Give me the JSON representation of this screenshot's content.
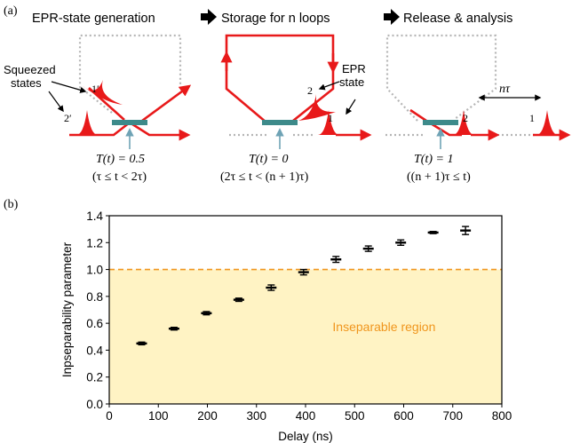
{
  "panel_a": {
    "label": "(a)",
    "stages": [
      {
        "title": "EPR-state generation",
        "eq": "T(t) = 0.5",
        "cond": "(τ ≤ t < 2τ)"
      },
      {
        "title": "Storage for n loops",
        "eq": "T(t) = 0",
        "cond": "(2τ ≤ t < (n + 1)τ)"
      },
      {
        "title": "Release & analysis",
        "eq": "T(t) = 1",
        "cond": "((n + 1)τ ≤ t)"
      }
    ],
    "squeezed_label_line1": "Squeezed",
    "squeezed_label_line2": "states",
    "epr_label_line1": "EPR",
    "epr_label_line2": "state",
    "mode_1p": "1′",
    "mode_2p": "2′",
    "mode_1": "1",
    "mode_2": "2",
    "delay_label": "nτ",
    "colors": {
      "beam": "#e8191a",
      "dotted": "#b5b5b5",
      "splitter": "#3d8a8a",
      "arrow_blue": "#6fa3b5"
    }
  },
  "panel_b": {
    "label": "(b)"
  },
  "chart_data": {
    "type": "scatter",
    "xlabel": "Delay (ns)",
    "ylabel": "Inpseparability parameter",
    "xlim": [
      0,
      800
    ],
    "ylim": [
      0.0,
      1.4
    ],
    "xticks": [
      "0",
      "100",
      "200",
      "300",
      "400",
      "500",
      "600",
      "700",
      "800"
    ],
    "yticks": [
      "0.0",
      "0.2",
      "0.4",
      "0.6",
      "0.8",
      "1.0",
      "1.2",
      "1.4"
    ],
    "x": [
      66,
      132,
      198,
      264,
      330,
      396,
      462,
      528,
      594,
      660,
      726
    ],
    "y": [
      0.45,
      0.56,
      0.675,
      0.775,
      0.865,
      0.98,
      1.075,
      1.155,
      1.2,
      1.275,
      1.29
    ],
    "yerr": [
      0.01,
      0.01,
      0.012,
      0.012,
      0.02,
      0.02,
      0.022,
      0.02,
      0.02,
      0.008,
      0.03
    ],
    "threshold": 1.0,
    "region_label": "Inseparable region",
    "colors": {
      "points": "#000000",
      "threshold": "#f0961e",
      "region": "#fff3c4",
      "region_text": "#f0961e"
    },
    "grid": false
  }
}
